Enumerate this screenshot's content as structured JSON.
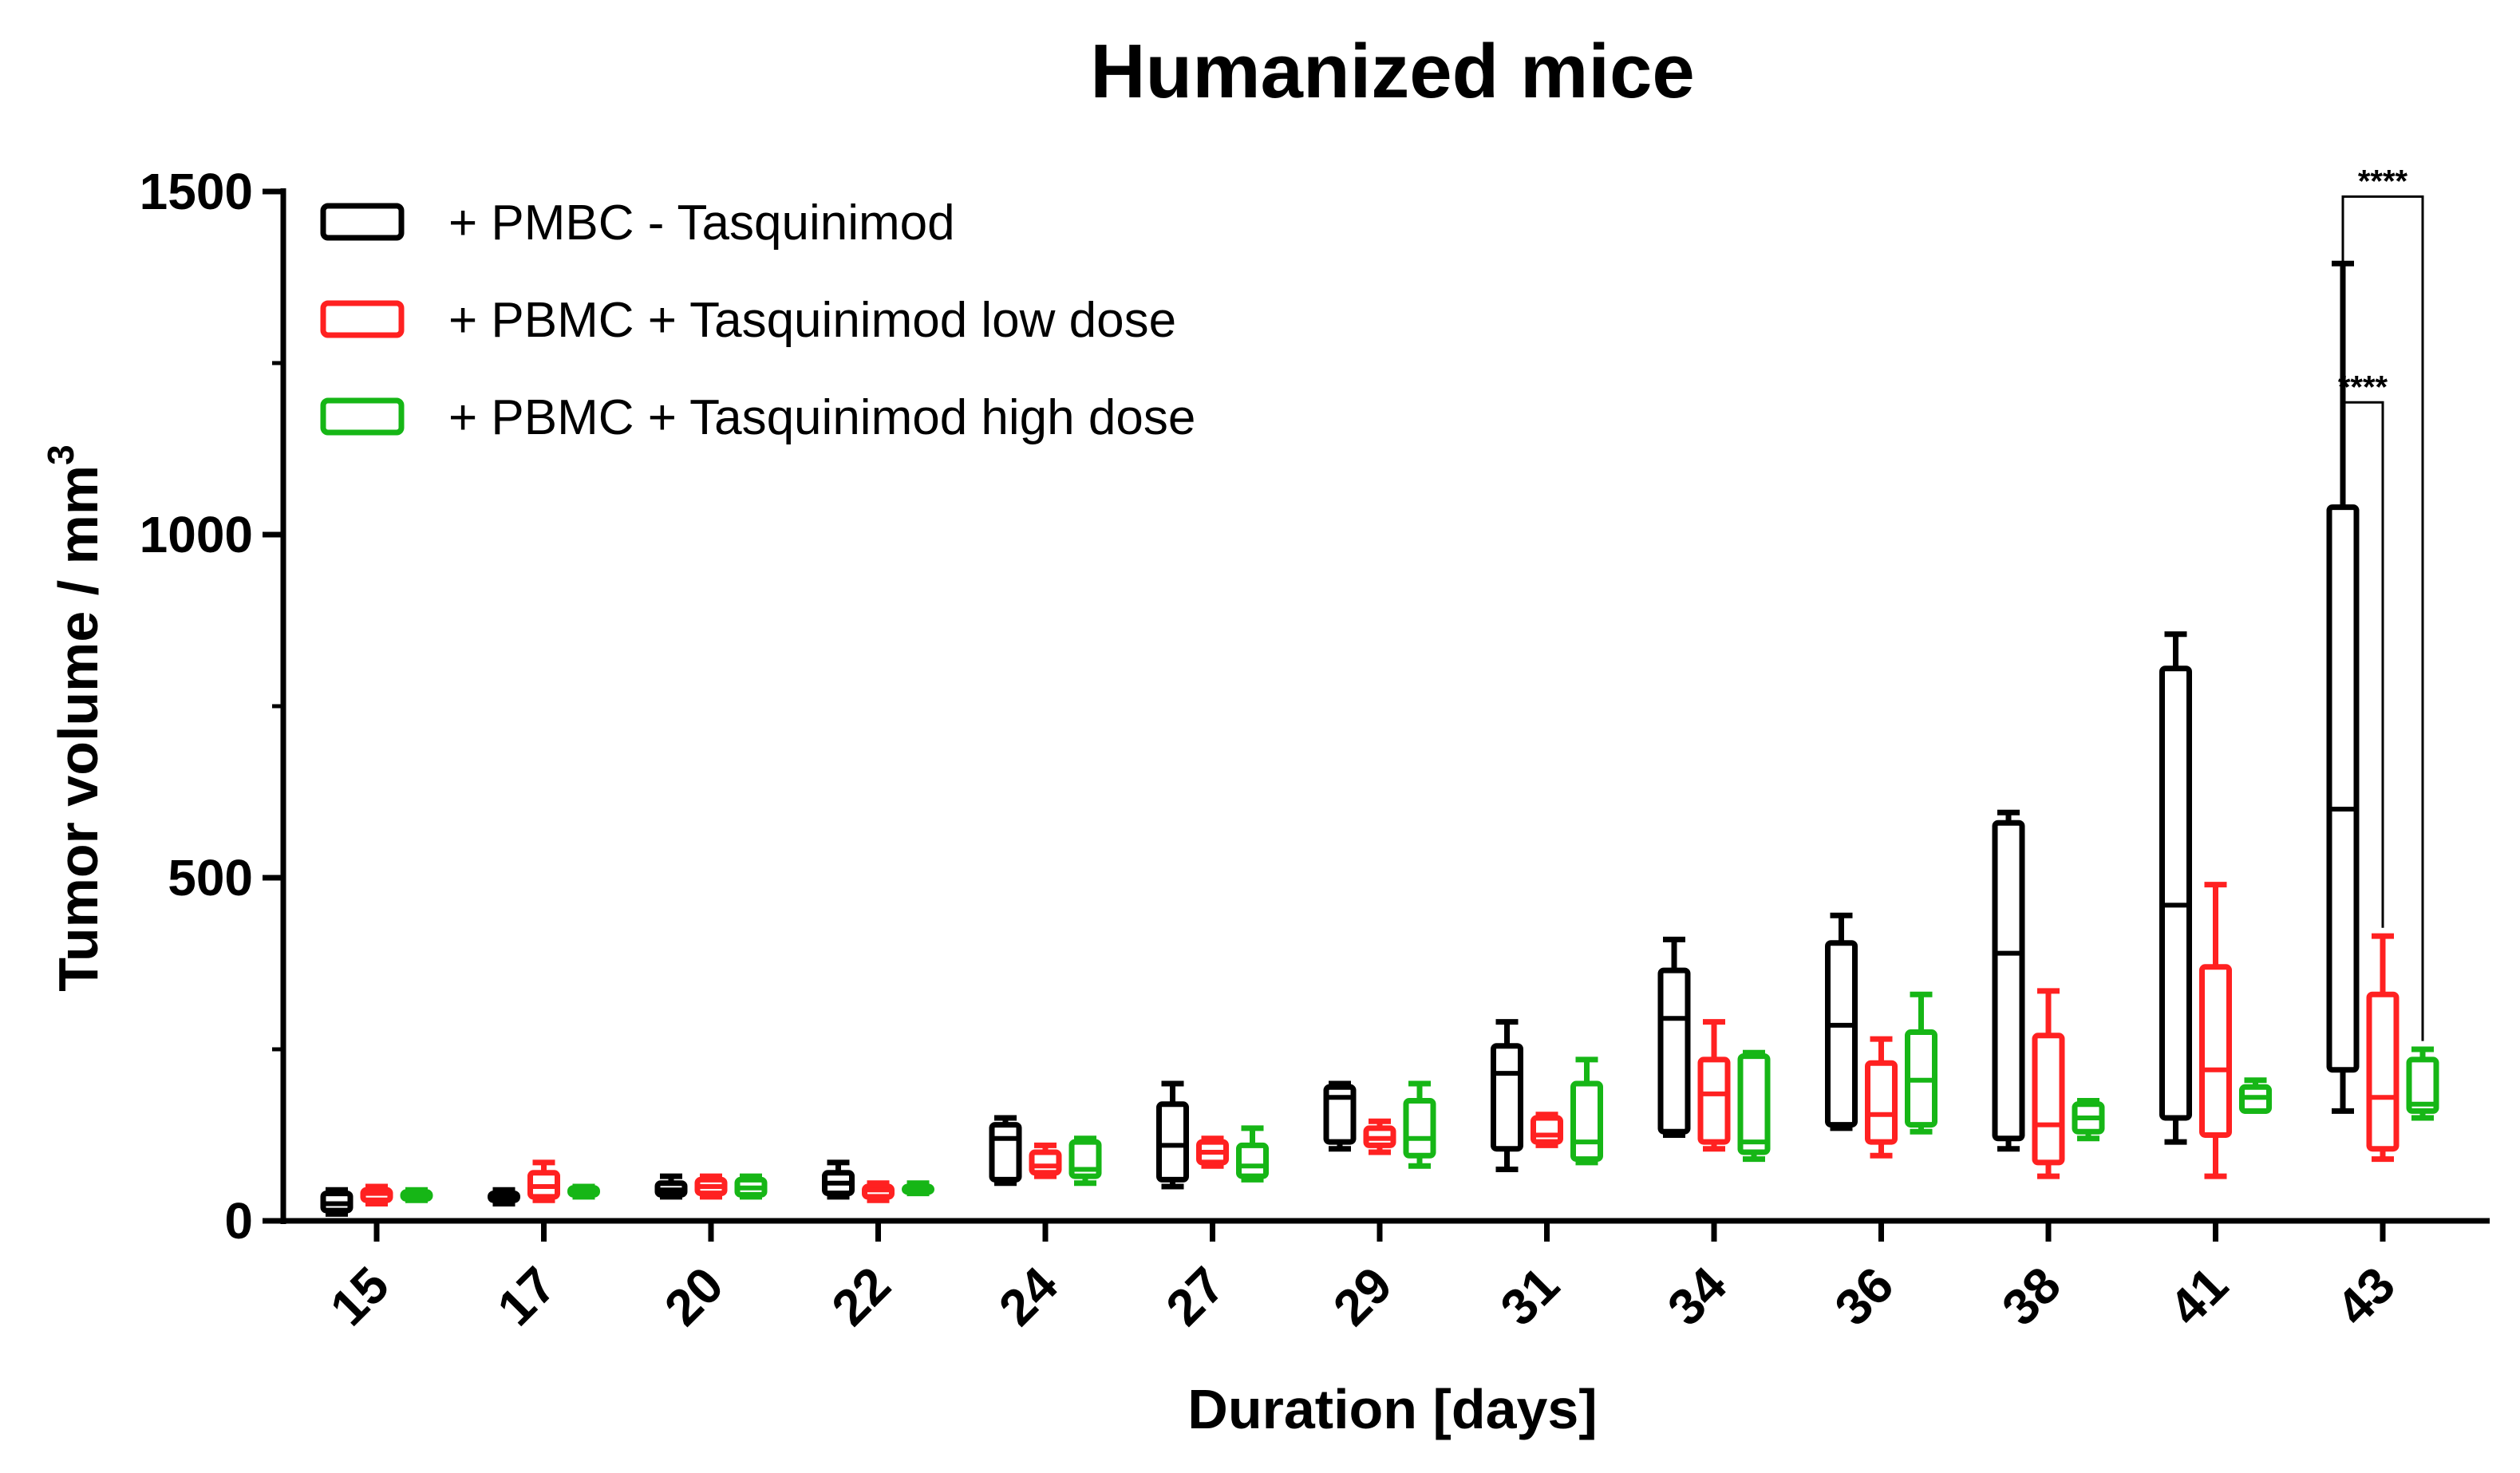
{
  "chart_data": {
    "type": "box",
    "title": "Humanized mice",
    "xlabel": "Duration [days]",
    "ylabel_main": "Tumor volume / mm",
    "ylabel_sup": "3",
    "ylim": [
      0,
      1500
    ],
    "yticks": [
      {
        "value": 0,
        "label": "0"
      },
      {
        "value": 500,
        "label": "500"
      },
      {
        "value": 1000,
        "label": "1000"
      },
      {
        "value": 1500,
        "label": "1500"
      }
    ],
    "categories": [
      "15",
      "17",
      "20",
      "22",
      "24",
      "27",
      "29",
      "31",
      "34",
      "36",
      "38",
      "41",
      "43"
    ],
    "series": [
      {
        "name": "+ PMBC - Tasquinimod",
        "color": "#000000",
        "boxes": [
          {
            "min": 10,
            "q1": 15,
            "median": 25,
            "q3": 40,
            "max": 45
          },
          {
            "min": 25,
            "q1": 30,
            "median": 35,
            "q3": 40,
            "max": 45
          },
          {
            "min": 35,
            "q1": 38,
            "median": 45,
            "q3": 55,
            "max": 65
          },
          {
            "min": 35,
            "q1": 40,
            "median": 55,
            "q3": 70,
            "max": 85
          },
          {
            "min": 55,
            "q1": 60,
            "median": 120,
            "q3": 140,
            "max": 150
          },
          {
            "min": 50,
            "q1": 60,
            "median": 110,
            "q3": 170,
            "max": 200
          },
          {
            "min": 105,
            "q1": 115,
            "median": 180,
            "q3": 195,
            "max": 200
          },
          {
            "min": 75,
            "q1": 105,
            "median": 215,
            "q3": 255,
            "max": 290
          },
          {
            "min": 125,
            "q1": 130,
            "median": 295,
            "q3": 365,
            "max": 410
          },
          {
            "min": 135,
            "q1": 140,
            "median": 285,
            "q3": 405,
            "max": 445
          },
          {
            "min": 105,
            "q1": 120,
            "median": 390,
            "q3": 580,
            "max": 595
          },
          {
            "min": 115,
            "q1": 150,
            "median": 460,
            "q3": 805,
            "max": 855
          },
          {
            "min": 160,
            "q1": 220,
            "median": 600,
            "q3": 1040,
            "max": 1395
          }
        ]
      },
      {
        "name": "+ PBMC + Tasquinimod low dose",
        "color": "#ff2121",
        "boxes": [
          {
            "min": 25,
            "q1": 30,
            "median": 40,
            "q3": 45,
            "max": 50
          },
          {
            "min": 30,
            "q1": 35,
            "median": 50,
            "q3": 70,
            "max": 85
          },
          {
            "min": 35,
            "q1": 40,
            "median": 50,
            "q3": 60,
            "max": 65
          },
          {
            "min": 30,
            "q1": 35,
            "median": 45,
            "q3": 50,
            "max": 55
          },
          {
            "min": 65,
            "q1": 70,
            "median": 80,
            "q3": 100,
            "max": 110
          },
          {
            "min": 80,
            "q1": 85,
            "median": 100,
            "q3": 115,
            "max": 120
          },
          {
            "min": 100,
            "q1": 110,
            "median": 120,
            "q3": 135,
            "max": 145
          },
          {
            "min": 110,
            "q1": 115,
            "median": 125,
            "q3": 150,
            "max": 155
          },
          {
            "min": 105,
            "q1": 115,
            "median": 185,
            "q3": 235,
            "max": 290
          },
          {
            "min": 95,
            "q1": 115,
            "median": 155,
            "q3": 230,
            "max": 265
          },
          {
            "min": 65,
            "q1": 85,
            "median": 140,
            "q3": 270,
            "max": 335
          },
          {
            "min": 65,
            "q1": 125,
            "median": 220,
            "q3": 370,
            "max": 490
          },
          {
            "min": 90,
            "q1": 105,
            "median": 180,
            "q3": 330,
            "max": 415
          }
        ]
      },
      {
        "name": "+ PBMC + Tasquinimod high dose",
        "color": "#16b616",
        "boxes": [
          {
            "min": 30,
            "q1": 32,
            "median": 38,
            "q3": 42,
            "max": 45
          },
          {
            "min": 35,
            "q1": 38,
            "median": 42,
            "q3": 48,
            "max": 50
          },
          {
            "min": 35,
            "q1": 38,
            "median": 48,
            "q3": 60,
            "max": 65
          },
          {
            "min": 40,
            "q1": 42,
            "median": 45,
            "q3": 50,
            "max": 55
          },
          {
            "min": 55,
            "q1": 65,
            "median": 75,
            "q3": 115,
            "max": 120
          },
          {
            "min": 60,
            "q1": 65,
            "median": 80,
            "q3": 110,
            "max": 135
          },
          {
            "min": 80,
            "q1": 95,
            "median": 120,
            "q3": 175,
            "max": 200
          },
          {
            "min": 85,
            "q1": 90,
            "median": 115,
            "q3": 200,
            "max": 235
          },
          {
            "min": 90,
            "q1": 100,
            "median": 115,
            "q3": 240,
            "max": 245
          },
          {
            "min": 130,
            "q1": 140,
            "median": 205,
            "q3": 275,
            "max": 330
          },
          {
            "min": 120,
            "q1": 130,
            "median": 150,
            "q3": 170,
            "max": 175
          },
          {
            "min": 160,
            "q1": 160,
            "median": 180,
            "q3": 195,
            "max": 205
          },
          {
            "min": 150,
            "q1": 160,
            "median": 170,
            "q3": 235,
            "max": 250
          }
        ]
      }
    ],
    "annotations": [
      {
        "label": "****",
        "from_series": 0,
        "to_series": 2,
        "category": "43"
      },
      {
        "label": "****",
        "from_series": 0,
        "to_series": 1,
        "category": "43"
      }
    ],
    "legend_position": "top-left"
  }
}
